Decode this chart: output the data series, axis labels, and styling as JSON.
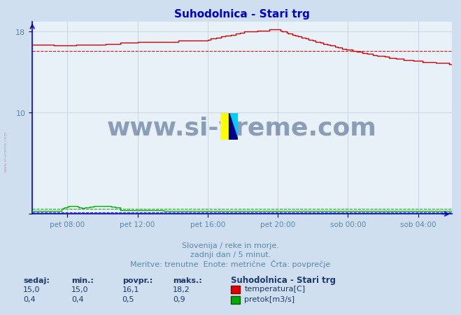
{
  "title": "Suhodolnica - Stari trg",
  "title_color": "#0000cc",
  "bg_color": "#d0dff0",
  "plot_bg_color": "#e8f0f8",
  "grid_color": "#c0ccd8",
  "axis_color": "#0000cc",
  "xlabel_ticks": [
    "pet 08:00",
    "pet 12:00",
    "pet 16:00",
    "pet 20:00",
    "sob 00:00",
    "sob 04:00"
  ],
  "tick_positions": [
    24,
    72,
    120,
    168,
    216,
    264
  ],
  "ylim": [
    0,
    19.0
  ],
  "xlim": [
    0,
    287
  ],
  "temp_avg": 16.1,
  "temp_color": "#cc0000",
  "flow_color": "#00aa00",
  "flow_avg_color": "#00aa00",
  "height_color": "#0000cc",
  "watermark": "www.si-vreme.com",
  "watermark_color": "#1a3a6b",
  "footer_line1": "Slovenija / reke in morje.",
  "footer_line2": "zadnji dan / 5 minut.",
  "footer_line3": "Meritve: trenutne  Enote: metrične  Črta: povprečje",
  "footer_color": "#5588aa",
  "table_header": [
    "sedaj:",
    "min.:",
    "povpr.:",
    "maks.:"
  ],
  "table_temp": [
    "15,0",
    "15,0",
    "16,1",
    "18,2"
  ],
  "table_flow": [
    "0,4",
    "0,4",
    "0,5",
    "0,9"
  ],
  "legend_title": "Suhodolnica - Stari trg",
  "legend_temp": "temperatura[C]",
  "legend_flow": "pretok[m3/s]",
  "label_color": "#1a3a6b",
  "ytick_labels": [
    "",
    "10",
    "18"
  ],
  "ytick_vals": [
    0,
    10,
    18
  ]
}
